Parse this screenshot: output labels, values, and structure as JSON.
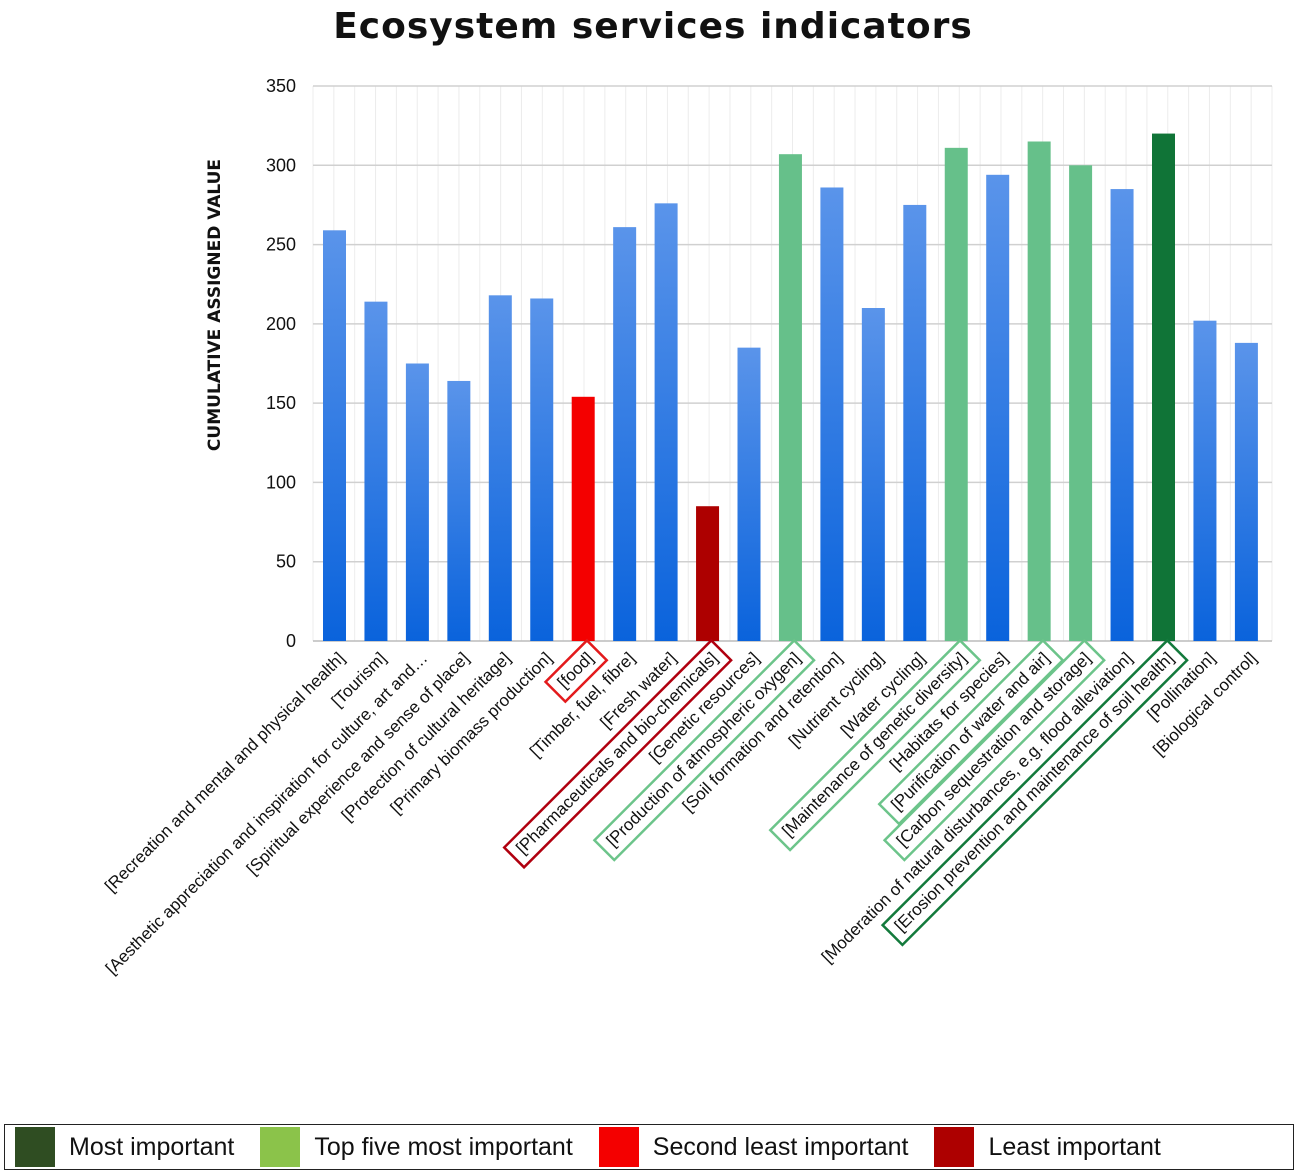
{
  "chart_data": {
    "type": "bar",
    "title": "Ecosystem services indicators",
    "ylabel": "CUMULATIVE ASSIGNED VALUE",
    "xlabel": "",
    "ylim": [
      0,
      350
    ],
    "yticks": [
      0,
      50,
      100,
      150,
      200,
      250,
      300,
      350
    ],
    "grid": true,
    "legend_position": "bottom",
    "categories": [
      "[Recreation and mental and physical health]",
      "[Tourism]",
      "[Aesthetic appreciation and inspiration for culture, art and…",
      "[Spiritual experience and sense of place]",
      "[Protection of cultural heritage]",
      "[Primary biomass production]",
      "[food]",
      "[Timber, fuel, fibre]",
      "[Fresh water]",
      "[Pharmaceuticals and bio-chemicals]",
      "[Genetic resources]",
      "[Production of atmospheric oxygen]",
      "[Soil formation and retention]",
      "[Nutrient cycling]",
      "[Water cycling]",
      "[Maintenance of genetic diversity]",
      "[Habitats for species]",
      "[Purification of water and air]",
      "[Carbon sequestration and storage]",
      "[Moderation of natural disturbances, e.g. flood alleviation]",
      "[Erosion prevention and maintenance of soil health]",
      "[Pollination]",
      "[Biological control]"
    ],
    "values": [
      259,
      214,
      175,
      164,
      218,
      216,
      154,
      261,
      276,
      85,
      185,
      307,
      286,
      210,
      275,
      311,
      294,
      315,
      300,
      285,
      320,
      202,
      188
    ],
    "categories_class": [
      "normal",
      "normal",
      "normal",
      "normal",
      "normal",
      "normal",
      "second_least",
      "normal",
      "normal",
      "least",
      "normal",
      "top_five",
      "normal",
      "normal",
      "normal",
      "top_five",
      "normal",
      "top_five",
      "top_five",
      "normal",
      "most",
      "normal",
      "normal"
    ],
    "colors": {
      "normal_top": "#5a94ea",
      "normal_bottom": "#0a63dc",
      "top_five": "#66c08a",
      "most": "#107437",
      "second_least": "#f40000",
      "least": "#ad0000",
      "grid": "#d0d0d0"
    },
    "legend": [
      {
        "label": "Most important",
        "color": "#2f4d22"
      },
      {
        "label": "Top five most important",
        "color": "#8bc34a"
      },
      {
        "label": "Second least important",
        "color": "#f40000"
      },
      {
        "label": "Least important",
        "color": "#ad0000"
      }
    ]
  }
}
